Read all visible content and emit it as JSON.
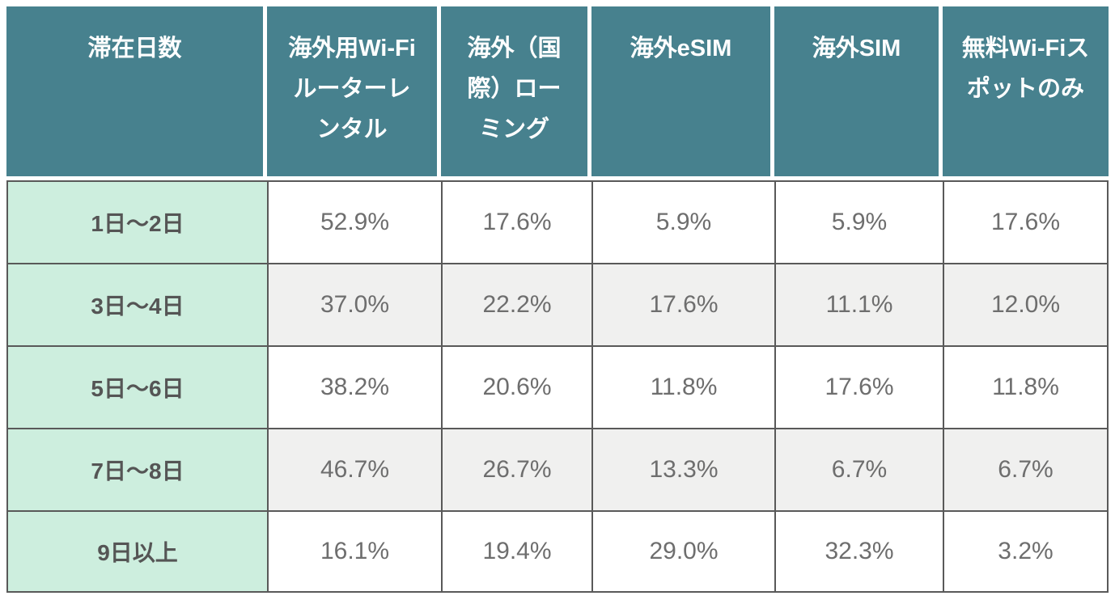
{
  "table": {
    "columns": [
      "滞在日数",
      "海外用Wi-Fiルーターレンタル",
      "海外（国際）ローミング",
      "海外eSIM",
      "海外SIM",
      "無料Wi-Fiスポットのみ"
    ],
    "rows": [
      {
        "label": "1日〜2日",
        "values": [
          "52.9%",
          "17.6%",
          "5.9%",
          "5.9%",
          "17.6%"
        ]
      },
      {
        "label": "3日〜4日",
        "values": [
          "37.0%",
          "22.2%",
          "17.6%",
          "11.1%",
          "12.0%"
        ]
      },
      {
        "label": "5日〜6日",
        "values": [
          "38.2%",
          "20.6%",
          "11.8%",
          "17.6%",
          "11.8%"
        ]
      },
      {
        "label": "7日〜8日",
        "values": [
          "46.7%",
          "26.7%",
          "13.3%",
          "6.7%",
          "6.7%"
        ]
      },
      {
        "label": "9日以上",
        "values": [
          "16.1%",
          "19.4%",
          "29.0%",
          "32.3%",
          "3.2%"
        ]
      }
    ]
  },
  "chart_data": {
    "type": "table",
    "row_header_label": "滞在日数",
    "categories": [
      "1日〜2日",
      "3日〜4日",
      "5日〜6日",
      "7日〜8日",
      "9日以上"
    ],
    "series": [
      {
        "name": "海外用Wi-Fiルーターレンタル",
        "values": [
          52.9,
          37.0,
          38.2,
          46.7,
          16.1
        ]
      },
      {
        "name": "海外（国際）ローミング",
        "values": [
          17.6,
          22.2,
          20.6,
          26.7,
          19.4
        ]
      },
      {
        "name": "海外eSIM",
        "values": [
          5.9,
          17.6,
          11.8,
          13.3,
          29.0
        ]
      },
      {
        "name": "海外SIM",
        "values": [
          5.9,
          11.1,
          17.6,
          6.7,
          32.3
        ]
      },
      {
        "name": "無料Wi-Fiスポットのみ",
        "values": [
          17.6,
          12.0,
          11.8,
          6.7,
          3.2
        ]
      }
    ],
    "unit": "%"
  },
  "colors": {
    "header_bg": "#47818E",
    "header_text": "#FFFFFF",
    "row_header_bg": "#CDEEDE",
    "row_header_text": "#555555",
    "stripe_bg": "#F0F0EF",
    "cell_bg": "#FFFFFF",
    "cell_text": "#6E6E6E",
    "border_color": "#595959",
    "gap_color": "#FFFFFF"
  }
}
